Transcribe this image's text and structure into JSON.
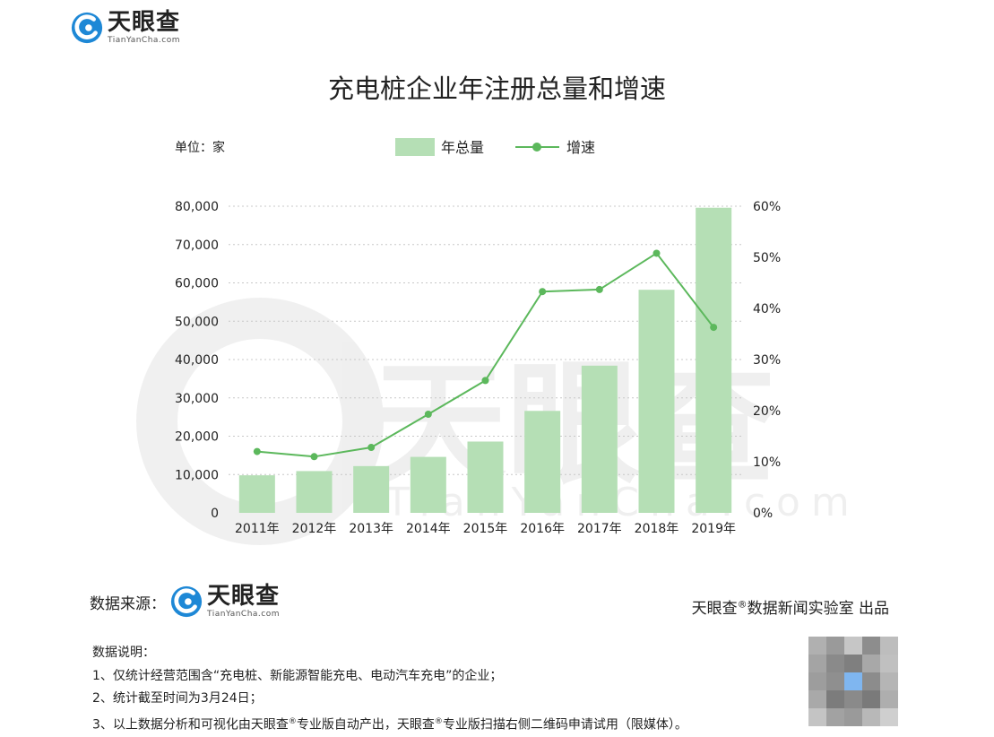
{
  "brand": {
    "name_cn": "天眼查",
    "name_en": "TianYanCha.com",
    "watermark_en": "TianYanCha.com",
    "color": "#1e88d6"
  },
  "chart_data": {
    "type": "bar",
    "title": "充电桩企业年注册总量和增速",
    "unit_label": "单位：家",
    "categories": [
      "2011年",
      "2012年",
      "2013年",
      "2014年",
      "2015年",
      "2016年",
      "2017年",
      "2018年",
      "2019年"
    ],
    "series": [
      {
        "name": "年总量",
        "kind": "bar",
        "axis": "left",
        "color": "#b5dfb5",
        "values": [
          9800,
          10900,
          12200,
          14600,
          18600,
          26600,
          38400,
          58200,
          79600
        ]
      },
      {
        "name": "增速",
        "kind": "line",
        "axis": "right",
        "color": "#5cb85c",
        "values": [
          12,
          11,
          12.8,
          19.3,
          25.9,
          43.3,
          43.7,
          50.8,
          36.3
        ]
      }
    ],
    "y_left": {
      "min": 0,
      "max": 80000,
      "ticks": [
        "0",
        "10,000",
        "20,000",
        "30,000",
        "40,000",
        "50,000",
        "60,000",
        "70,000",
        "80,000"
      ]
    },
    "y_right": {
      "min": 0,
      "max": 60,
      "ticks": [
        "0%",
        "10%",
        "20%",
        "30%",
        "40%",
        "50%",
        "60%"
      ]
    },
    "grid": true,
    "legend_position": "top-center"
  },
  "footer": {
    "source_label": "数据来源：",
    "credit_brand": "天眼查",
    "credit_mark": "®",
    "credit_text": "数据新闻实验室 出品"
  },
  "notes": {
    "heading": "数据说明：",
    "line1": "1、仅统计经营范围含“充电桩、新能源智能充电、电动汽车充电”的企业；",
    "line2": "2、统计截至时间为3月24日；",
    "line3_a": "3、以上数据分析和可视化由天眼查",
    "line3_mark": "®",
    "line3_b": "专业版自动产出，天眼查",
    "line3_c": "专业版扫描右侧二维码申请试用（限媒体）。"
  }
}
